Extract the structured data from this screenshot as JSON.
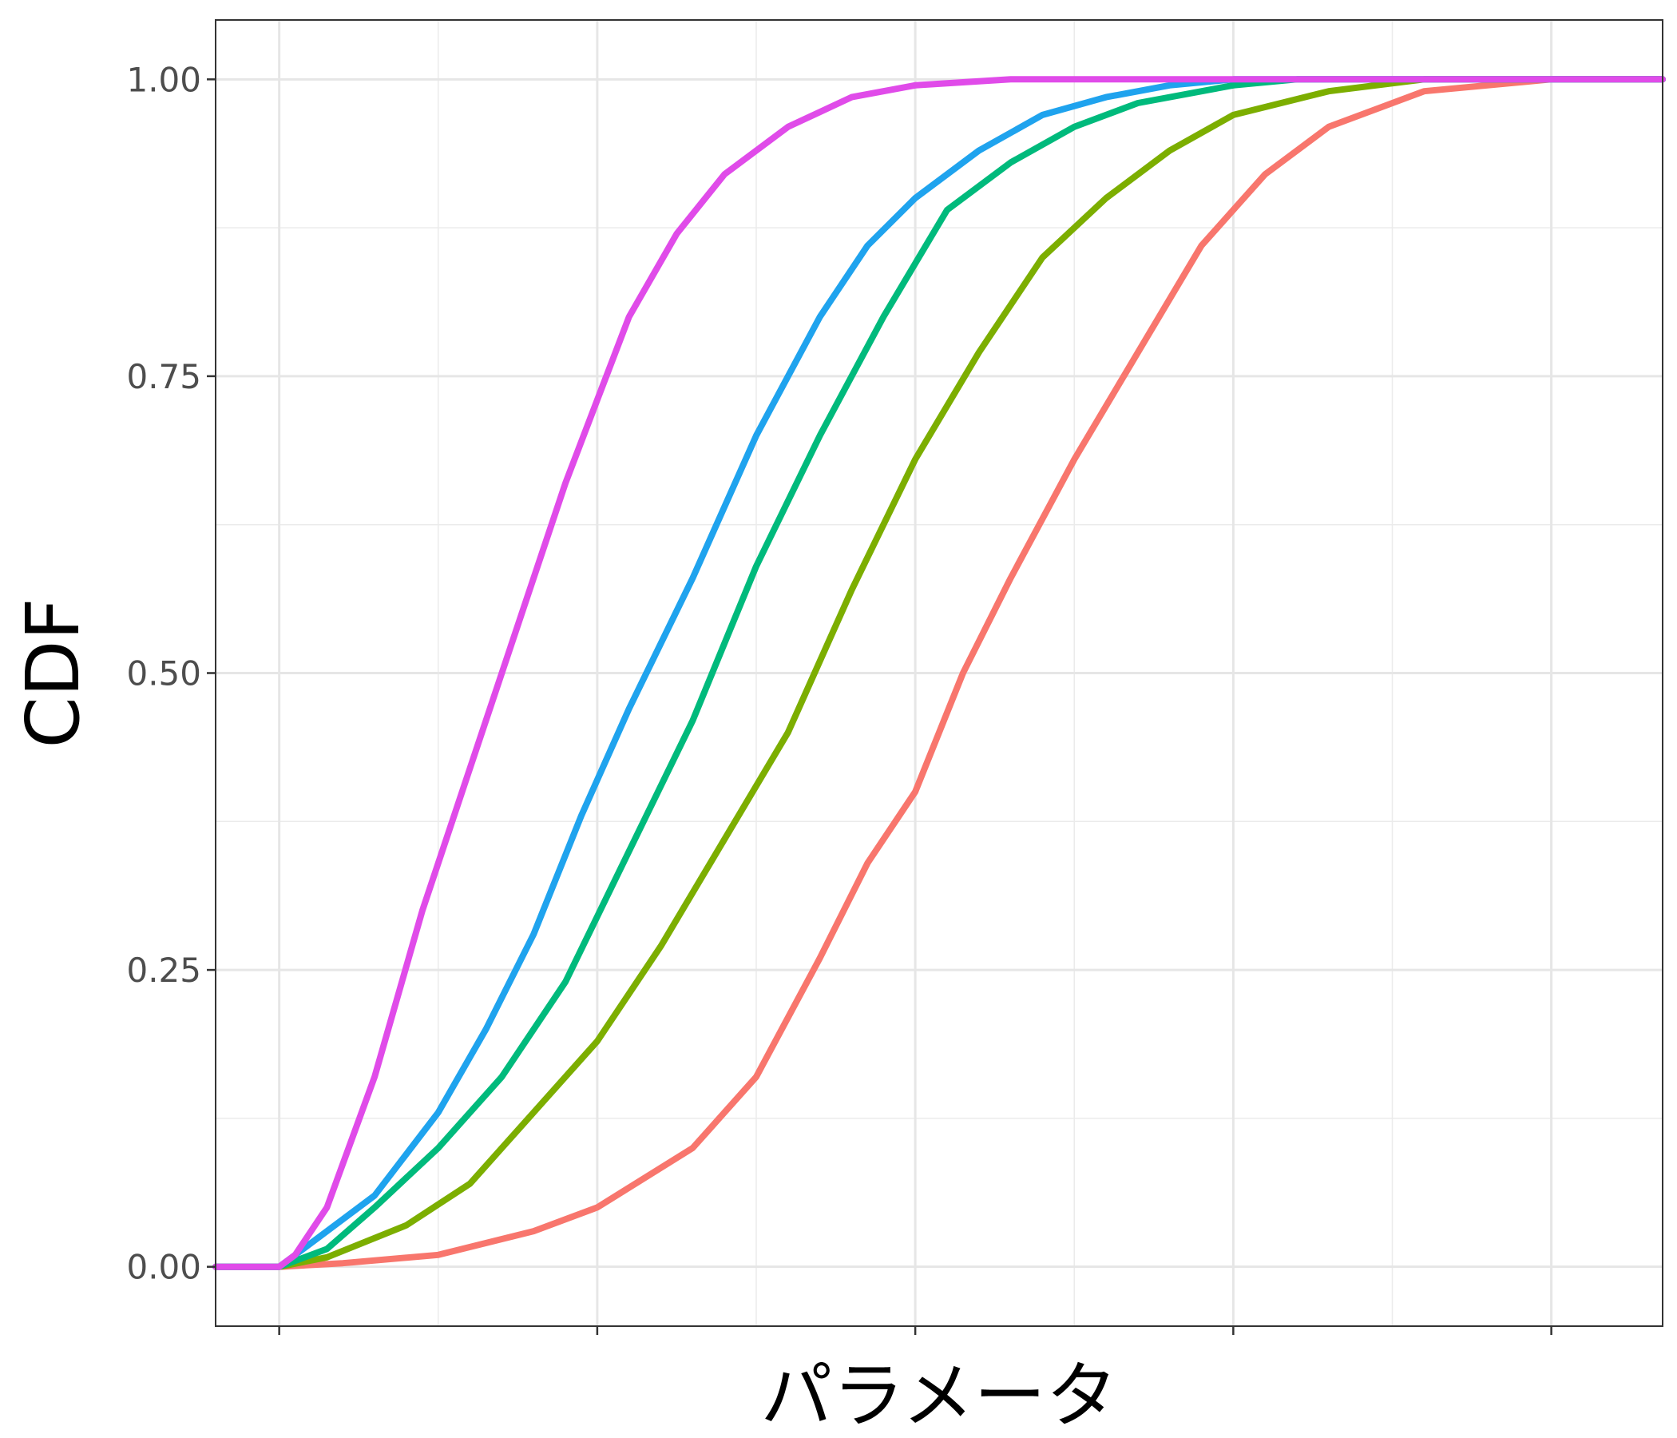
{
  "chart_data": {
    "type": "line",
    "title": "",
    "xlabel": "パラメータ",
    "ylabel": "CDF",
    "xlim": [
      -0.2,
      4.35
    ],
    "ylim": [
      -0.05,
      1.05
    ],
    "x_major_ticks": [
      0,
      1,
      2,
      3,
      4
    ],
    "x_tick_labels": [
      "",
      "",
      "",
      "",
      ""
    ],
    "y_major_ticks": [
      0,
      0.25,
      0.5,
      0.75,
      1.0
    ],
    "y_tick_labels": [
      "0.00",
      "0.25",
      "0.50",
      "0.75",
      "1.00"
    ],
    "grid": true,
    "legend": "none",
    "series": [
      {
        "color": "#F8766D",
        "x": [
          -0.2,
          0.0,
          0.2,
          0.5,
          0.8,
          1.0,
          1.3,
          1.5,
          1.7,
          1.85,
          2.0,
          2.15,
          2.3,
          2.5,
          2.7,
          2.9,
          3.1,
          3.3,
          3.6,
          4.0,
          4.35
        ],
        "y": [
          0.0,
          0.0,
          0.003,
          0.01,
          0.03,
          0.05,
          0.1,
          0.16,
          0.26,
          0.34,
          0.4,
          0.5,
          0.58,
          0.68,
          0.77,
          0.86,
          0.92,
          0.96,
          0.99,
          1.0,
          1.0
        ]
      },
      {
        "color": "#7CAE00",
        "x": [
          -0.2,
          0.0,
          0.15,
          0.4,
          0.6,
          0.8,
          1.0,
          1.2,
          1.4,
          1.6,
          1.8,
          2.0,
          2.2,
          2.4,
          2.6,
          2.8,
          3.0,
          3.3,
          3.6,
          4.35
        ],
        "y": [
          0.0,
          0.0,
          0.008,
          0.035,
          0.07,
          0.13,
          0.19,
          0.27,
          0.36,
          0.45,
          0.57,
          0.68,
          0.77,
          0.85,
          0.9,
          0.94,
          0.97,
          0.99,
          1.0,
          1.0
        ]
      },
      {
        "color": "#00BA7C",
        "x": [
          -0.2,
          0.0,
          0.15,
          0.3,
          0.5,
          0.7,
          0.9,
          1.1,
          1.3,
          1.5,
          1.7,
          1.9,
          2.1,
          2.3,
          2.5,
          2.7,
          3.0,
          3.2,
          4.35
        ],
        "y": [
          0.0,
          0.0,
          0.015,
          0.05,
          0.1,
          0.16,
          0.24,
          0.35,
          0.46,
          0.59,
          0.7,
          0.8,
          0.89,
          0.93,
          0.96,
          0.98,
          0.995,
          1.0,
          1.0
        ]
      },
      {
        "color": "#1FA3EE",
        "x": [
          -0.2,
          0.0,
          0.1,
          0.3,
          0.5,
          0.65,
          0.8,
          0.95,
          1.1,
          1.3,
          1.5,
          1.7,
          1.85,
          2.0,
          2.2,
          2.4,
          2.6,
          2.8,
          3.0,
          4.35
        ],
        "y": [
          0.0,
          0.0,
          0.02,
          0.06,
          0.13,
          0.2,
          0.28,
          0.38,
          0.47,
          0.58,
          0.7,
          0.8,
          0.86,
          0.9,
          0.94,
          0.97,
          0.985,
          0.995,
          1.0,
          1.0
        ]
      },
      {
        "color": "#E04BE9",
        "x": [
          -0.2,
          0.0,
          0.05,
          0.15,
          0.3,
          0.45,
          0.6,
          0.7,
          0.8,
          0.9,
          1.0,
          1.1,
          1.25,
          1.4,
          1.6,
          1.8,
          2.0,
          2.3,
          2.6,
          4.35
        ],
        "y": [
          0.0,
          0.0,
          0.01,
          0.05,
          0.16,
          0.3,
          0.42,
          0.5,
          0.58,
          0.66,
          0.73,
          0.8,
          0.87,
          0.92,
          0.96,
          0.985,
          0.995,
          1.0,
          1.0,
          1.0
        ]
      }
    ]
  }
}
